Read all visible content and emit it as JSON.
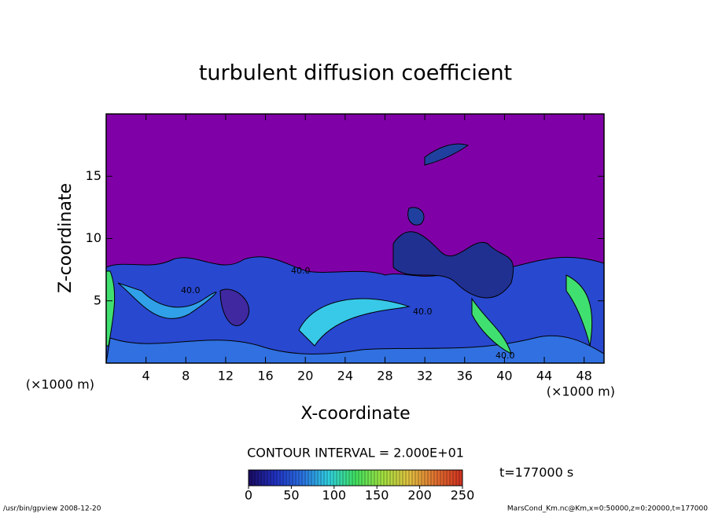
{
  "chart_data": {
    "type": "contour",
    "title": "turbulent diffusion coefficient",
    "x_label": "X-coordinate",
    "y_label": "Z-coordinate",
    "x_unit": "(×1000 m)",
    "xlim": [
      0,
      50
    ],
    "xticks": [
      4,
      8,
      12,
      16,
      20,
      24,
      28,
      32,
      36,
      40,
      44,
      48
    ],
    "ylim": [
      0,
      20
    ],
    "yticks": [
      5,
      10,
      15
    ],
    "contour_interval": "CONTOUR INTERVAL = 2.000E+01",
    "contour_labels": [
      "40.0",
      "40.0",
      "40.0",
      "40.0"
    ],
    "time_label": "t=177000 s",
    "clim": [
      0,
      250
    ],
    "cticks": [
      0,
      50,
      100,
      150,
      200,
      250
    ],
    "colormap": [
      "#1a0a60",
      "#2030c0",
      "#2a70e0",
      "#30d0e0",
      "#40e060",
      "#a0e040",
      "#e0c040",
      "#e07030",
      "#d03020"
    ],
    "background_color": "#8000a8",
    "footer_left": "/usr/bin/gpview   2008-12-20",
    "footer_right": "MarsCond_Km.nc@Km,x=0:50000,z=0:20000,t=177000"
  }
}
